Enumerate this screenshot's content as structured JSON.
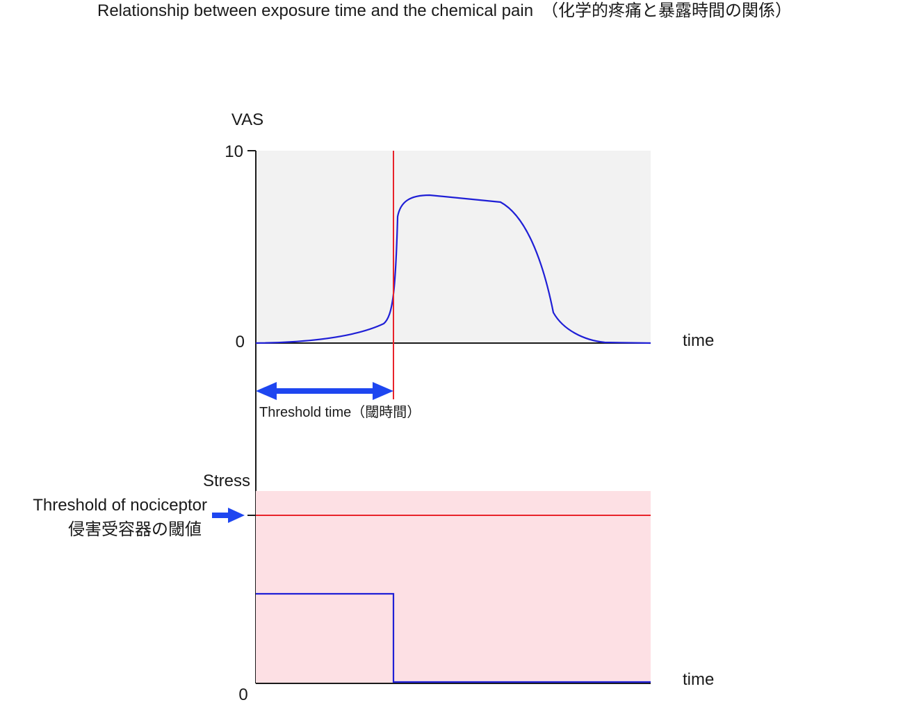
{
  "title": "Relationship between exposure time and the chemical pain　（化学的疼痛と暴露時間の関係）",
  "upper_panel": {
    "y_axis_label": "VAS",
    "y_tick_max": "10",
    "y_tick_min": "0",
    "x_axis_label": "time",
    "background_color": "#f2f2f2",
    "curve_color": "#1f1fd6",
    "threshold_line_color": "#e8232a"
  },
  "threshold_time": {
    "label": "Threshold time（閾時間）",
    "arrow_color": "#1e46f0"
  },
  "lower_panel": {
    "y_axis_label": "Stress",
    "y_tick_min": "0",
    "x_axis_label": "time",
    "background_color": "#fde0e4",
    "stress_line_color": "#1f1fd6",
    "threshold_line_color": "#e8232a",
    "threshold_label_en": "Threshold of nociceptor",
    "threshold_label_ja": "侵害受容器の閾値",
    "pointer_arrow_color": "#1e46f0"
  }
}
